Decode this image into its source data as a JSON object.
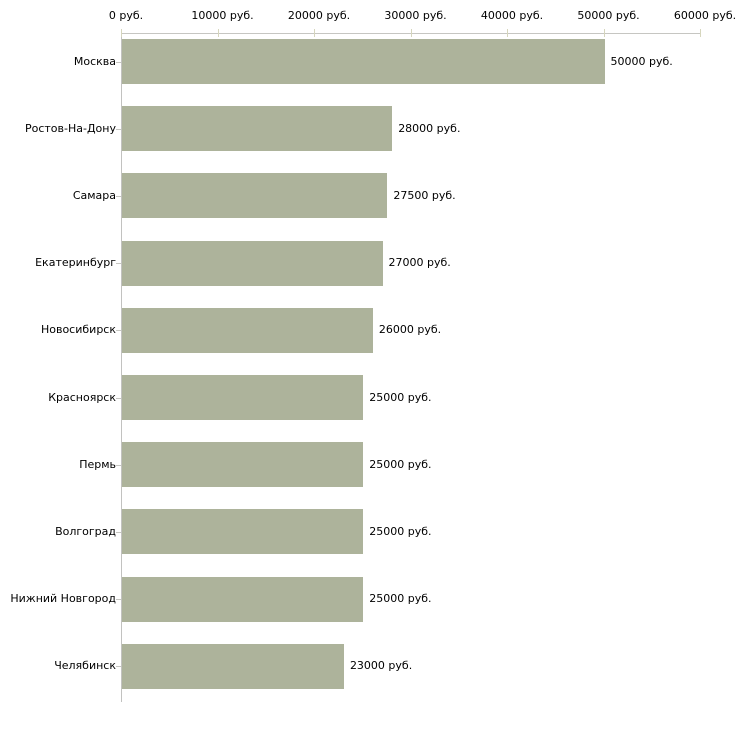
{
  "chart_data": {
    "type": "bar",
    "orientation": "horizontal",
    "title": "",
    "xlabel": "",
    "ylabel": "",
    "categories": [
      "Москва",
      "Ростов-На-Дону",
      "Самара",
      "Екатеринбург",
      "Новосибирск",
      "Красноярск",
      "Пермь",
      "Волгоград",
      "Нижний Новгород",
      "Челябинск"
    ],
    "values": [
      50000,
      28000,
      27500,
      27000,
      26000,
      25000,
      25000,
      25000,
      25000,
      23000
    ],
    "value_labels": [
      "50000 руб.",
      "28000 руб.",
      "27500 руб.",
      "27000 руб.",
      "26000 руб.",
      "25000 руб.",
      "25000 руб.",
      "25000 руб.",
      "25000 руб.",
      "23000 руб."
    ],
    "xlim": [
      0,
      60000
    ],
    "x_ticks": [
      0,
      10000,
      20000,
      30000,
      40000,
      50000,
      60000
    ],
    "x_tick_labels": [
      "0 руб.",
      "10000 руб.",
      "20000 руб.",
      "30000 руб.",
      "40000 руб.",
      "50000 руб.",
      "60000 руб."
    ],
    "grid": false,
    "legend": "none",
    "axis_position": "top",
    "colors": {
      "bar": "#adb39b",
      "axis": "#c6c6c2",
      "tick": "#d6d6bd",
      "text": "#000000",
      "background": "#ffffff"
    }
  }
}
